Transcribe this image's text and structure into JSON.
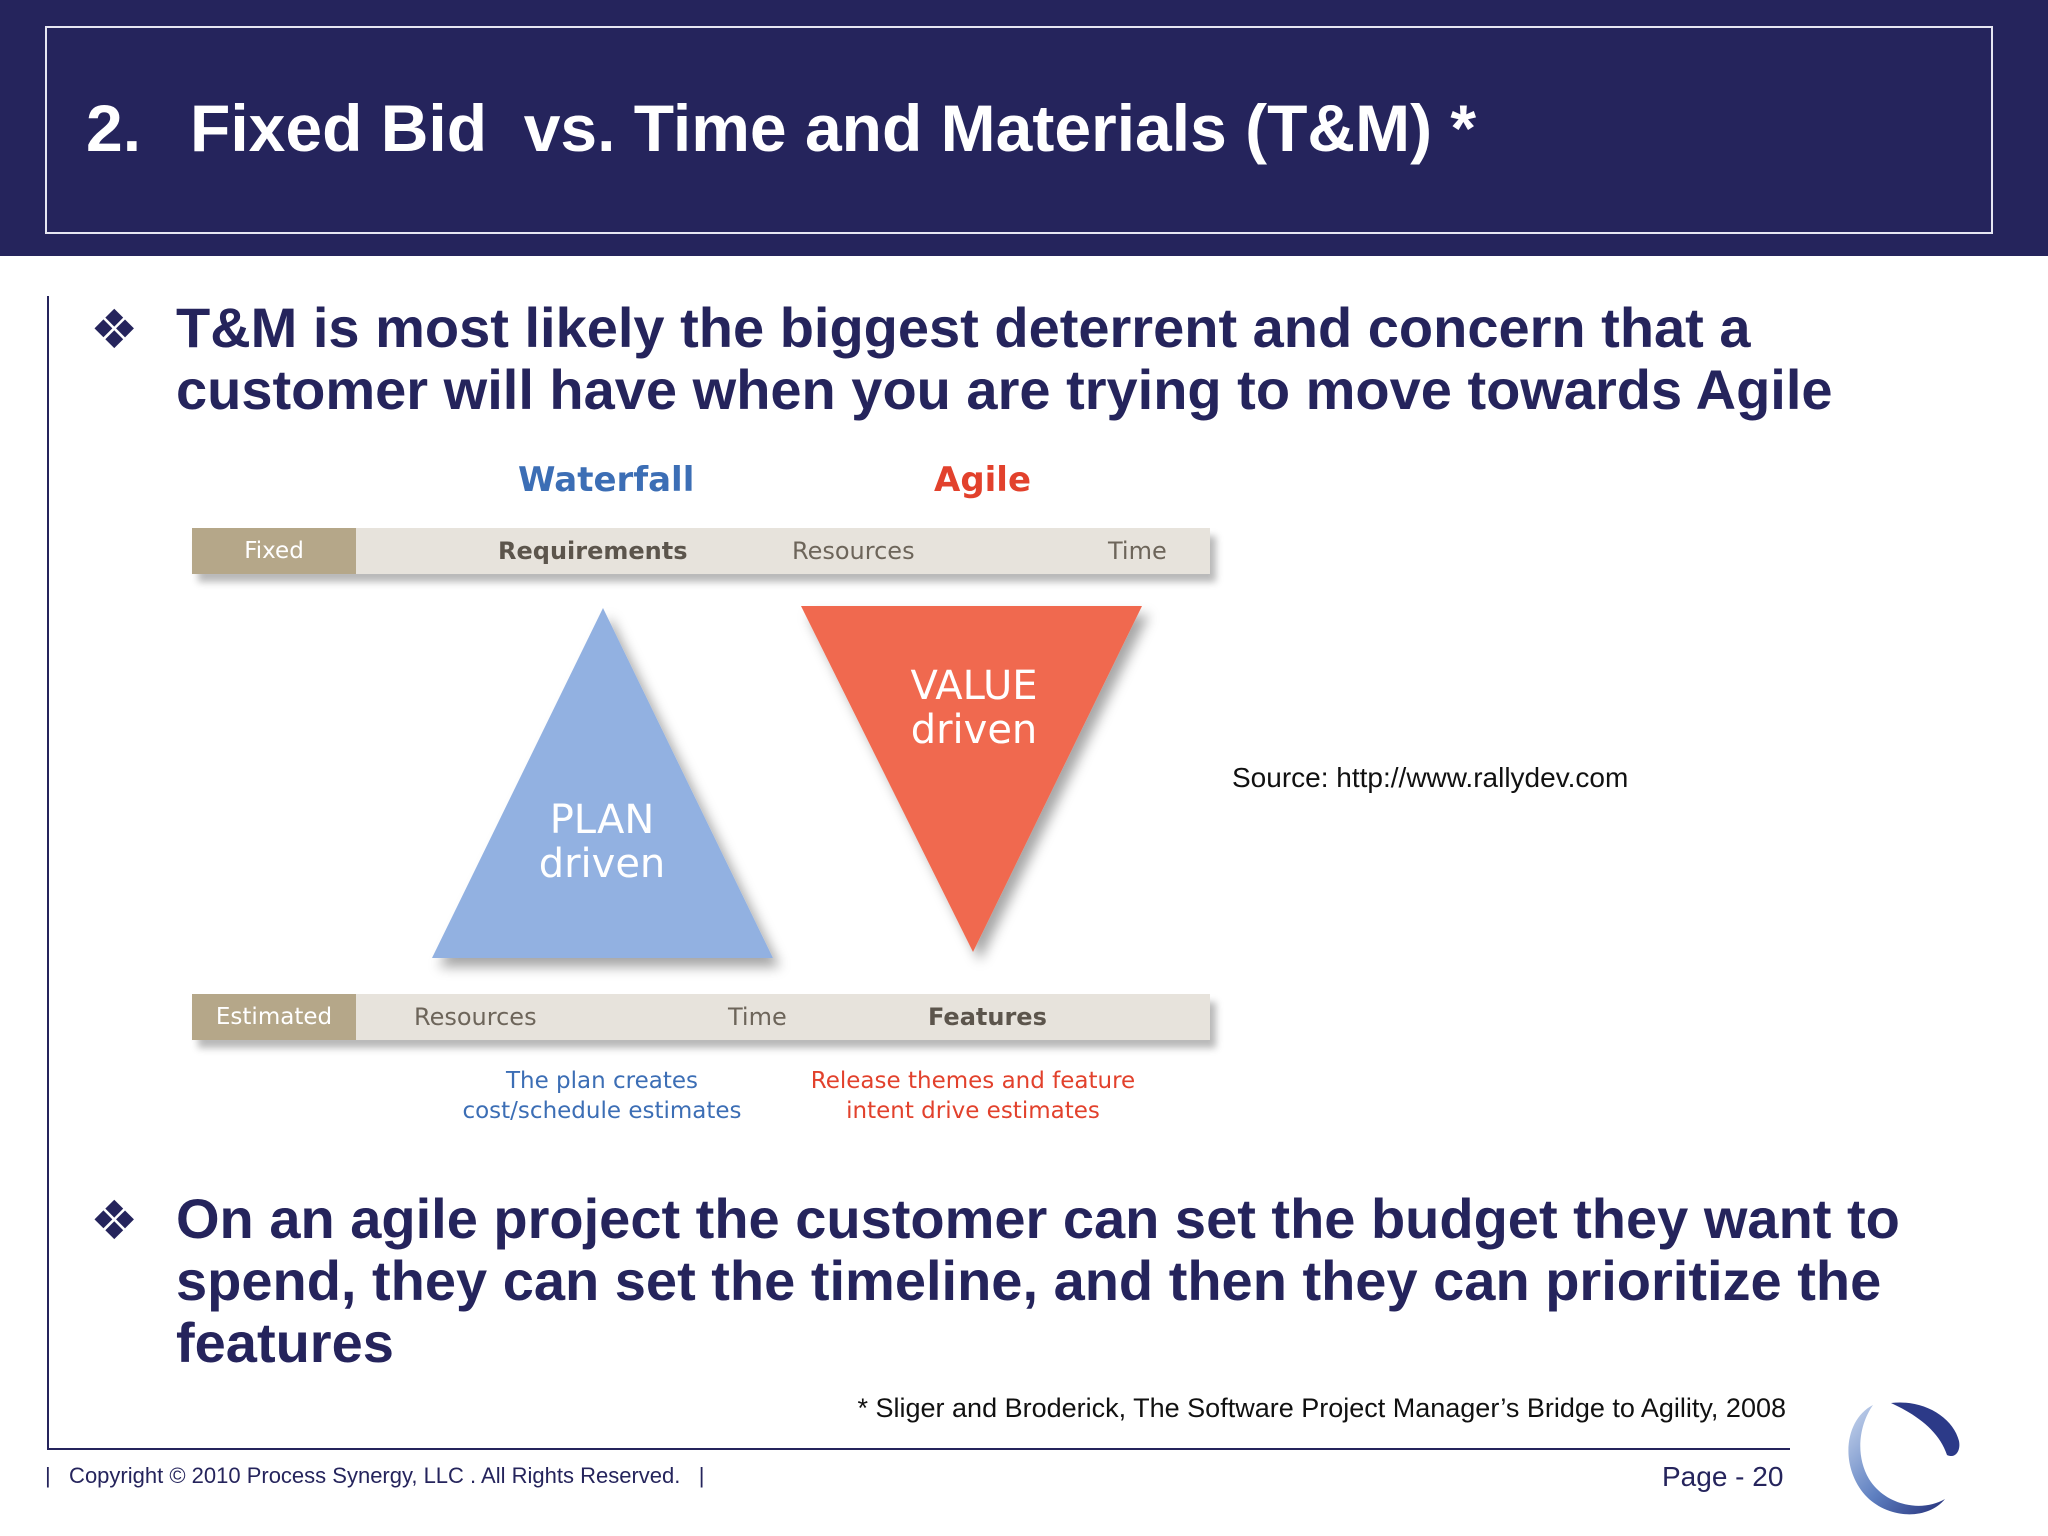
{
  "header": {
    "number": "2.",
    "title": "Fixed Bid  vs. Time and Materials (T&M) *"
  },
  "bullets": [
    {
      "glyph": "❖",
      "lines": [
        "T&M is most likely the biggest deterrent and concern that a",
        "customer will have when you are trying to move towards Agile"
      ]
    },
    {
      "glyph": "❖",
      "lines": [
        "On an agile project the customer can set the budget they want to",
        "spend, they can set the timeline, and then they can prioritize the",
        "features"
      ]
    }
  ],
  "diagram": {
    "waterfall_heading": "Waterfall",
    "agile_heading": "Agile",
    "top_bar": {
      "tag": "Fixed",
      "items": [
        "Requirements",
        "Resources",
        "Time"
      ]
    },
    "bottom_bar": {
      "tag": "Estimated",
      "items": [
        "Resources",
        "Time",
        "Features"
      ]
    },
    "plan_triangle": {
      "line1": "PLAN",
      "line2": "driven"
    },
    "value_triangle": {
      "line1": "VALUE",
      "line2": "driven"
    },
    "waterfall_caption": [
      "The plan creates",
      "cost/schedule estimates"
    ],
    "agile_caption": [
      "Release themes and feature",
      "intent drive estimates"
    ],
    "colors": {
      "waterfall": "#3c6eb5",
      "agile": "#e2412c",
      "plan_fill": "#92b1e1",
      "value_fill": "#f0694f",
      "tag_fill": "#b5a789",
      "bar_fill": "#e7e3dc"
    }
  },
  "source_note": "Source: http://www.rallydev.com",
  "citation": "* Sliger and Broderick, The Software Project Manager’s Bridge to Agility, 2008",
  "footer": {
    "copyright": "|   Copyright © 2010 Process Synergy, LLC . All Rights Reserved.   |",
    "page_label": "Page - 20"
  },
  "colors": {
    "header_bg": "#25245c",
    "text": "#25245c"
  }
}
